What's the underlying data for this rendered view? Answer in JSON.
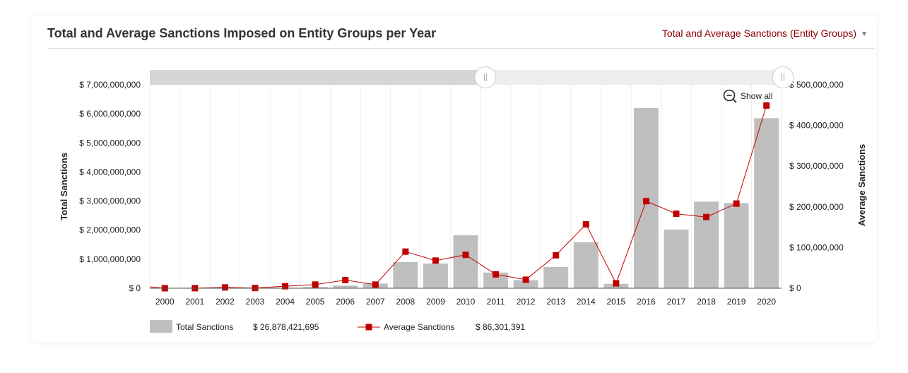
{
  "header": {
    "title": "Total and Average Sanctions Imposed on Entity Groups per Year",
    "view_select_label": "Total and Average Sanctions (Entity Groups)",
    "view_select_icon": "caret-down-icon"
  },
  "controls": {
    "show_all_label": "Show all",
    "show_all_icon": "zoom-out-icon",
    "range_selector": {
      "start": 0.53,
      "end": 1.0
    }
  },
  "legend": {
    "total_label": "Total Sanctions",
    "total_value": "$ 26,878,421,695",
    "average_label": "Average Sanctions",
    "average_value": "$ 86,301,391"
  },
  "colors": {
    "bar": "#bfbfbf",
    "line": "#c00000",
    "title_accent": "#8b0000"
  },
  "chart_data": {
    "type": "bar",
    "categories": [
      "2000",
      "2001",
      "2002",
      "2003",
      "2004",
      "2005",
      "2006",
      "2007",
      "2008",
      "2009",
      "2010",
      "2011",
      "2012",
      "2013",
      "2014",
      "2015",
      "2016",
      "2017",
      "2018",
      "2019",
      "2020"
    ],
    "series": [
      {
        "name": "Total Sanctions",
        "type": "bar",
        "axis": "left",
        "values": [
          0,
          2000000,
          5000000,
          2000000,
          20000000,
          40000000,
          90000000,
          160000000,
          900000000,
          850000000,
          1820000000,
          540000000,
          280000000,
          730000000,
          1580000000,
          150000000,
          6200000000,
          2020000000,
          2980000000,
          2930000000,
          5850000000
        ]
      },
      {
        "name": "Average Sanctions",
        "type": "line",
        "axis": "right",
        "values": [
          0,
          200000,
          2000000,
          500000,
          5000000,
          9000000,
          20000000,
          9000000,
          90000000,
          68000000,
          82000000,
          34000000,
          21000000,
          81000000,
          157000000,
          12000000,
          214000000,
          183000000,
          175000000,
          208000000,
          449000000
        ]
      }
    ],
    "y_left": {
      "label": "Total Sanctions",
      "ylim": [
        0,
        7000000000
      ],
      "ticks": [
        0,
        1000000000,
        2000000000,
        3000000000,
        4000000000,
        5000000000,
        6000000000,
        7000000000
      ],
      "tick_labels": [
        "$ 0",
        "$ 1,000,000,000",
        "$ 2,000,000,000",
        "$ 3,000,000,000",
        "$ 4,000,000,000",
        "$ 5,000,000,000",
        "$ 6,000,000,000",
        "$ 7,000,000,000"
      ]
    },
    "y_right": {
      "label": "Average Sanctions",
      "ylim": [
        0,
        500000000
      ],
      "ticks": [
        0,
        100000000,
        200000000,
        300000000,
        400000000,
        500000000
      ],
      "tick_labels": [
        "$ 0",
        "$ 100,000,000",
        "$ 200,000,000",
        "$ 300,000,000",
        "$ 400,000,000",
        "$ 500,000,000"
      ]
    },
    "grid": "vertical",
    "legend_position": "bottom-left"
  }
}
